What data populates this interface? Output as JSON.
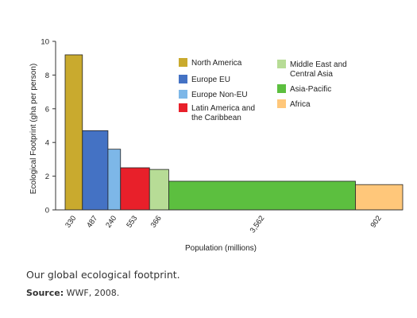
{
  "chart_data": {
    "type": "bar",
    "variant": "variable-width",
    "title": "",
    "xlabel": "Population (millions)",
    "ylabel": "Ecological Footprint (gha per person)",
    "ylim": [
      0,
      10
    ],
    "yticks": [
      0,
      2,
      4,
      6,
      8,
      10
    ],
    "grid": false,
    "legend_position": "top-right",
    "series": [
      {
        "name": "North America",
        "population": 330,
        "population_label": "330",
        "value": 9.2,
        "color": "#c9aa2e"
      },
      {
        "name": "Europe EU",
        "population": 487,
        "population_label": "487",
        "value": 4.7,
        "color": "#4472c4"
      },
      {
        "name": "Europe Non-EU",
        "population": 240,
        "population_label": "240",
        "value": 3.6,
        "color": "#7db7e8"
      },
      {
        "name": "Latin America and the Caribbean",
        "population": 553,
        "population_label": "553",
        "value": 2.5,
        "color": "#e8202a"
      },
      {
        "name": "Middle East and Central Asia",
        "population": 366,
        "population_label": "366",
        "value": 2.4,
        "color": "#b7dc96"
      },
      {
        "name": "Asia-Pacific",
        "population": 3562,
        "population_label": "3,562",
        "value": 1.7,
        "color": "#5cbf3f"
      },
      {
        "name": "Africa",
        "population": 902,
        "population_label": "902",
        "value": 1.5,
        "color": "#ffc77a"
      }
    ],
    "legend": [
      {
        "label_lines": [
          "North America"
        ],
        "color": "#c9aa2e"
      },
      {
        "label_lines": [
          "Europe EU"
        ],
        "color": "#4472c4"
      },
      {
        "label_lines": [
          "Europe Non-EU"
        ],
        "color": "#7db7e8"
      },
      {
        "label_lines": [
          "Latin America and",
          "the Caribbean"
        ],
        "color": "#e8202a"
      },
      {
        "label_lines": [
          "Middle East and",
          "Central Asia"
        ],
        "color": "#b7dc96"
      },
      {
        "label_lines": [
          "Asia-Pacific"
        ],
        "color": "#5cbf3f"
      },
      {
        "label_lines": [
          "Africa"
        ],
        "color": "#ffc77a"
      }
    ]
  },
  "caption": "Our global ecological footprint.",
  "source": {
    "label": "Source:",
    "text": " WWF, 2008."
  }
}
